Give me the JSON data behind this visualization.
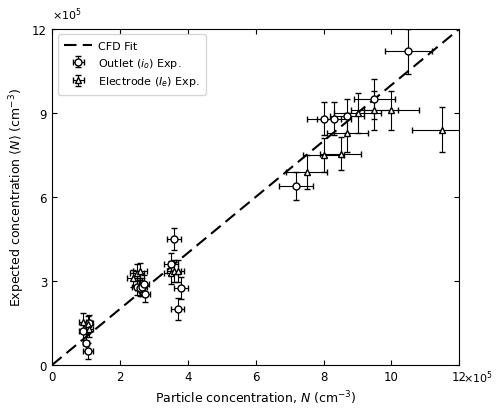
{
  "title": "",
  "xlabel": "Particle concentration, $N$ (cm$^{-3}$)",
  "ylabel": "Expected concentration $\\langle N \\rangle$ (cm$^{-3}$)",
  "xlim": [
    0,
    1200000
  ],
  "ylim": [
    0,
    1200000
  ],
  "xticks": [
    0,
    200000,
    400000,
    600000,
    800000,
    1000000,
    1200000
  ],
  "yticks": [
    0,
    300000,
    600000,
    900000,
    1200000
  ],
  "cfd_fit_x": [
    0,
    1200000
  ],
  "cfd_fit_y": [
    0,
    1200000
  ],
  "outlet_data": {
    "x": [
      90000,
      100000,
      105000,
      110000,
      250000,
      260000,
      265000,
      270000,
      275000,
      350000,
      360000,
      370000,
      380000,
      720000,
      800000,
      830000,
      870000,
      950000,
      1050000
    ],
    "y": [
      120000,
      80000,
      50000,
      150000,
      280000,
      275000,
      280000,
      290000,
      255000,
      360000,
      450000,
      200000,
      275000,
      640000,
      880000,
      880000,
      890000,
      950000,
      1120000
    ],
    "xerr": [
      10000,
      10000,
      15000,
      10000,
      15000,
      15000,
      15000,
      15000,
      15000,
      20000,
      20000,
      20000,
      20000,
      50000,
      50000,
      50000,
      50000,
      60000,
      70000
    ],
    "yerr": [
      30000,
      30000,
      30000,
      30000,
      30000,
      30000,
      30000,
      30000,
      30000,
      40000,
      40000,
      40000,
      40000,
      50000,
      60000,
      60000,
      60000,
      70000,
      80000
    ]
  },
  "electrode_data": {
    "x": [
      90000,
      105000,
      110000,
      240000,
      250000,
      260000,
      350000,
      360000,
      370000,
      750000,
      800000,
      850000,
      870000,
      900000,
      950000,
      1000000,
      1150000
    ],
    "y": [
      155000,
      145000,
      130000,
      310000,
      330000,
      335000,
      330000,
      335000,
      335000,
      690000,
      750000,
      755000,
      830000,
      900000,
      910000,
      910000,
      840000
    ],
    "xerr": [
      10000,
      10000,
      10000,
      20000,
      20000,
      20000,
      20000,
      20000,
      20000,
      60000,
      60000,
      60000,
      60000,
      70000,
      70000,
      80000,
      90000
    ],
    "yerr": [
      30000,
      30000,
      30000,
      30000,
      30000,
      30000,
      40000,
      40000,
      40000,
      60000,
      60000,
      60000,
      70000,
      70000,
      70000,
      70000,
      80000
    ]
  },
  "legend_labels": [
    "Outlet ($i_o$) Exp.",
    "Electrode ($I_e$) Exp.",
    "CFD Fit"
  ],
  "background_color": "#ffffff",
  "line_color": "#000000"
}
